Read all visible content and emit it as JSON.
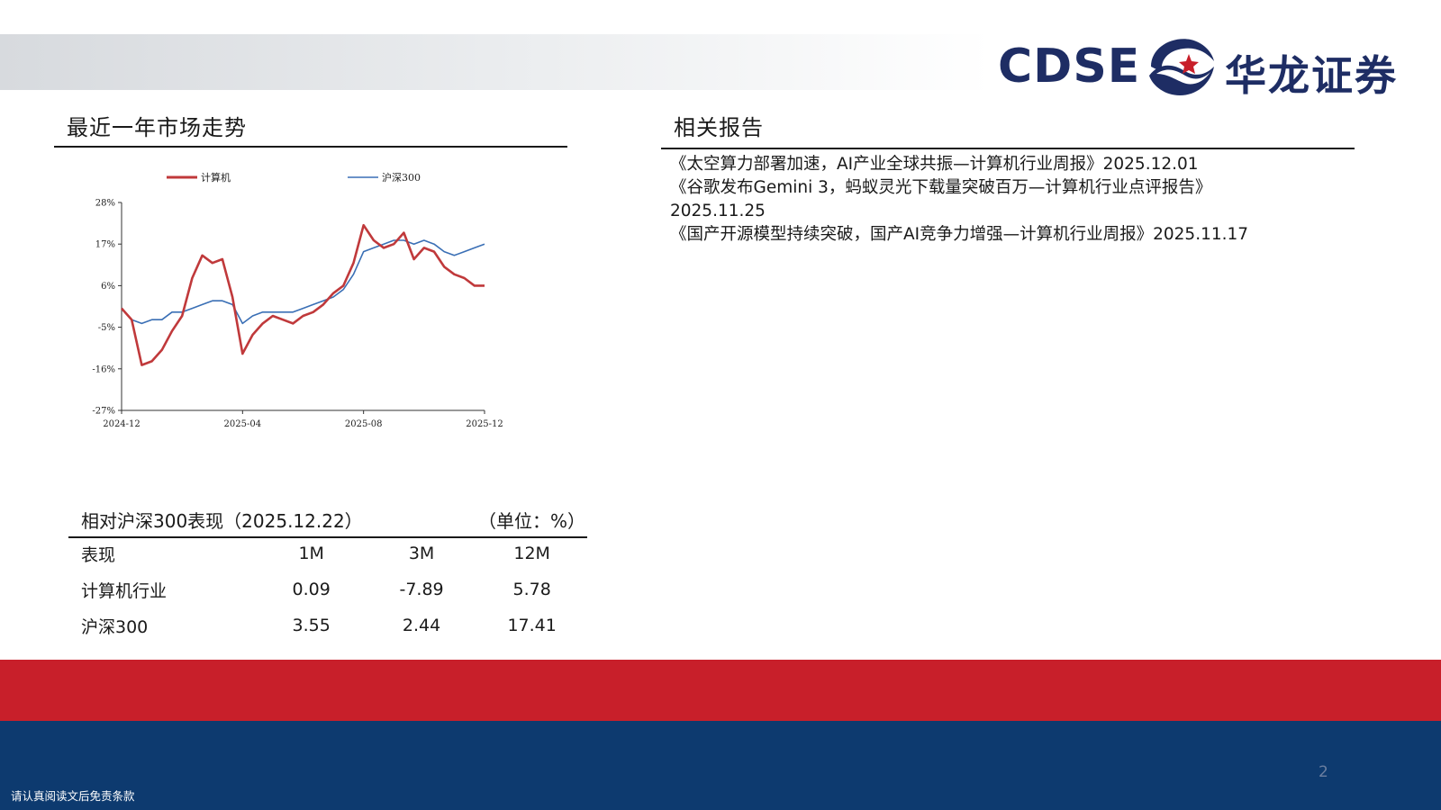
{
  "header": {
    "logo_en": "CDSE",
    "logo_cn": "华龙证券"
  },
  "market_section": {
    "title": "最近一年市场走势"
  },
  "reports_section": {
    "title": "相关报告",
    "items": [
      "《太空算力部署加速，AI产业全球共振—计算机行业周报》2025.12.01",
      "《谷歌发布Gemini 3，蚂蚁灵光下载量突破百万—计算机行业点评报告》",
      "2025.11.25",
      "《国产开源模型持续突破，国产AI竞争力增强—计算机行业周报》2025.11.17"
    ]
  },
  "chart_data": {
    "type": "line",
    "x_ticks": [
      "2024-12",
      "2025-04",
      "2025-08",
      "2025-12"
    ],
    "y_ticks": [
      "28%",
      "17%",
      "6%",
      "-5%",
      "-16%",
      "-27%"
    ],
    "ylim": [
      -27,
      28
    ],
    "legend_position": "top",
    "grid": false,
    "x": [
      "2024-12",
      "2024-12",
      "2025-01",
      "2025-01",
      "2025-01",
      "2025-02",
      "2025-02",
      "2025-02",
      "2025-03",
      "2025-03",
      "2025-03",
      "2025-04",
      "2025-04",
      "2025-04",
      "2025-05",
      "2025-05",
      "2025-05",
      "2025-06",
      "2025-06",
      "2025-06",
      "2025-07",
      "2025-07",
      "2025-07",
      "2025-08",
      "2025-08",
      "2025-08",
      "2025-09",
      "2025-09",
      "2025-09",
      "2025-10",
      "2025-10",
      "2025-10",
      "2025-11",
      "2025-11",
      "2025-11",
      "2025-12",
      "2025-12"
    ],
    "series": [
      {
        "name": "计算机",
        "color": "#c0393b",
        "values": [
          0,
          -3,
          -15,
          -14,
          -11,
          -6,
          -2,
          8,
          14,
          12,
          13,
          3,
          -12,
          -7,
          -4,
          -2,
          -3,
          -4,
          -2,
          -1,
          1,
          4,
          6,
          12,
          22,
          18,
          16,
          17,
          20,
          13,
          16,
          15,
          11,
          9,
          8,
          6,
          6
        ]
      },
      {
        "name": "沪深300",
        "color": "#3a6fb5",
        "values": [
          0,
          -3,
          -4,
          -3,
          -3,
          -1,
          -1,
          0,
          1,
          2,
          2,
          1,
          -4,
          -2,
          -1,
          -1,
          -1,
          -1,
          0,
          1,
          2,
          3,
          5,
          9,
          15,
          16,
          17,
          18,
          18,
          17,
          18,
          17,
          15,
          14,
          15,
          16,
          17
        ]
      }
    ]
  },
  "performance": {
    "title": "相对沪深300表现（2025.12.22）",
    "unit": "（单位：%）",
    "columns": [
      "表现",
      "1M",
      "3M",
      "12M"
    ],
    "rows": [
      {
        "name": "计算机行业",
        "values": [
          "0.09",
          "-7.89",
          "5.78"
        ]
      },
      {
        "name": "沪深300",
        "values": [
          "3.55",
          "2.44",
          "17.41"
        ]
      }
    ]
  },
  "footer": {
    "page_number": "2",
    "disclaimer": "请认真阅读文后免责条款"
  }
}
